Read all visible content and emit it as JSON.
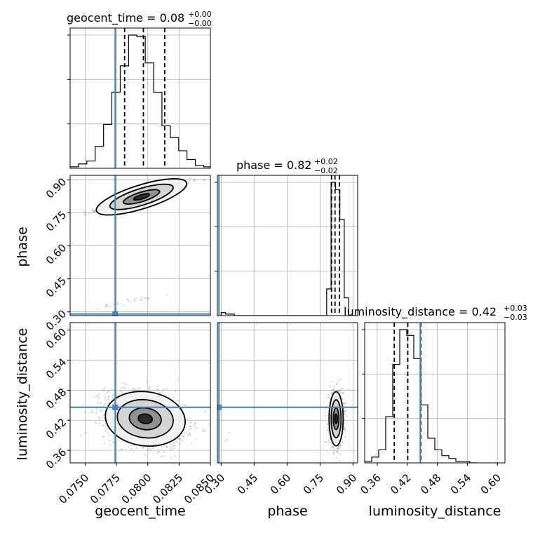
{
  "chart_data": {
    "type": "corner",
    "parameters": [
      "geocent_time",
      "phase",
      "luminosity_distance"
    ],
    "titles": [
      {
        "param": "geocent_time",
        "text": "geocent_time = 0.08",
        "sup": "+0.00",
        "sub": "−0.00"
      },
      {
        "param": "phase",
        "text": "phase = 0.82",
        "sup": "+0.02",
        "sub": "−0.02"
      },
      {
        "param": "luminosity_distance",
        "text": "luminosity_distance = 0.42",
        "sup": "+0.03",
        "sub": "−0.03"
      }
    ],
    "axis_labels": {
      "geocent_time": "geocent_time",
      "phase": "phase",
      "luminosity_distance": "luminosity_distance"
    },
    "ticks": {
      "geocent_time": [
        "0.0750",
        "0.0775",
        "0.0800",
        "0.0825",
        "0.0850"
      ],
      "phase": [
        "0.30",
        "0.45",
        "0.60",
        "0.75",
        "0.90"
      ],
      "luminosity_distance": [
        "0.36",
        "0.42",
        "0.48",
        "0.54",
        "0.60"
      ]
    },
    "ranges": {
      "geocent_time": [
        0.0738,
        0.085
      ],
      "phase": [
        0.283,
        0.921
      ],
      "luminosity_distance": [
        0.335,
        0.615
      ]
    },
    "truths": {
      "geocent_time": 0.0774,
      "phase": 0.29,
      "luminosity_distance": 0.4459
    },
    "quantiles": {
      "geocent_time": [
        0.07815,
        0.07965,
        0.08135
      ],
      "phase": [
        0.802,
        0.818,
        0.838
      ],
      "luminosity_distance": [
        0.394,
        0.421,
        0.447
      ]
    },
    "marginals": {
      "geocent_time": {
        "edges": [
          0.0738,
          0.07447,
          0.07513,
          0.0758,
          0.07647,
          0.07713,
          0.0778,
          0.07847,
          0.07913,
          0.0798,
          0.08047,
          0.08113,
          0.0818,
          0.08247,
          0.08313,
          0.0838,
          0.08447,
          0.08513
        ],
        "counts": [
          1,
          3,
          5,
          15,
          30,
          52,
          70,
          91,
          90,
          72,
          52,
          29,
          21,
          12,
          6,
          2,
          1
        ]
      },
      "phase": {
        "edges": [
          0.3,
          0.32,
          0.34,
          0.36,
          0.38,
          0.4,
          0.42,
          0.44,
          0.46,
          0.48,
          0.5,
          0.52,
          0.54,
          0.56,
          0.58,
          0.6,
          0.62,
          0.64,
          0.66,
          0.68,
          0.7,
          0.72,
          0.74,
          0.76,
          0.78,
          0.8,
          0.82,
          0.84,
          0.86,
          0.88
        ],
        "counts": [
          2,
          1,
          1,
          0,
          0,
          0,
          0,
          0,
          0,
          0,
          0,
          0,
          0,
          0,
          0,
          0,
          0,
          0,
          0,
          0,
          0,
          0,
          0,
          0,
          18,
          90,
          85,
          65,
          12
        ]
      },
      "luminosity_distance": {
        "edges": [
          0.335,
          0.349,
          0.363,
          0.377,
          0.391,
          0.405,
          0.419,
          0.433,
          0.447,
          0.461,
          0.475,
          0.489,
          0.503,
          0.517,
          0.531,
          0.545,
          0.559
        ],
        "counts": [
          1,
          4,
          9,
          32,
          68,
          92,
          88,
          72,
          40,
          17,
          9,
          5,
          3,
          1,
          1,
          0
        ]
      }
    },
    "samples_2d": [
      {
        "x": "geocent_time",
        "y": "phase",
        "clusters": [
          {
            "cx": 0.0795,
            "cy": 0.823,
            "sx": 0.0018,
            "sy": 0.032,
            "rho": 0.96,
            "n": 480
          },
          {
            "cx": 0.0785,
            "cy": 0.345,
            "sx": 0.0017,
            "sy": 0.02,
            "rho": 0.95,
            "n": 26
          }
        ]
      },
      {
        "x": "geocent_time",
        "y": "luminosity_distance",
        "clusters": [
          {
            "cx": 0.0798,
            "cy": 0.423,
            "sx": 0.0016,
            "sy": 0.027,
            "rho": -0.25,
            "n": 1400
          }
        ]
      },
      {
        "x": "phase",
        "y": "luminosity_distance",
        "clusters": [
          {
            "cx": 0.823,
            "cy": 0.423,
            "sx": 0.016,
            "sy": 0.027,
            "rho": 0.0,
            "n": 900
          },
          {
            "cx": 0.33,
            "cy": 0.44,
            "sx": 0.02,
            "sy": 0.03,
            "rho": 0.0,
            "n": 4
          }
        ]
      }
    ],
    "grid": true
  }
}
